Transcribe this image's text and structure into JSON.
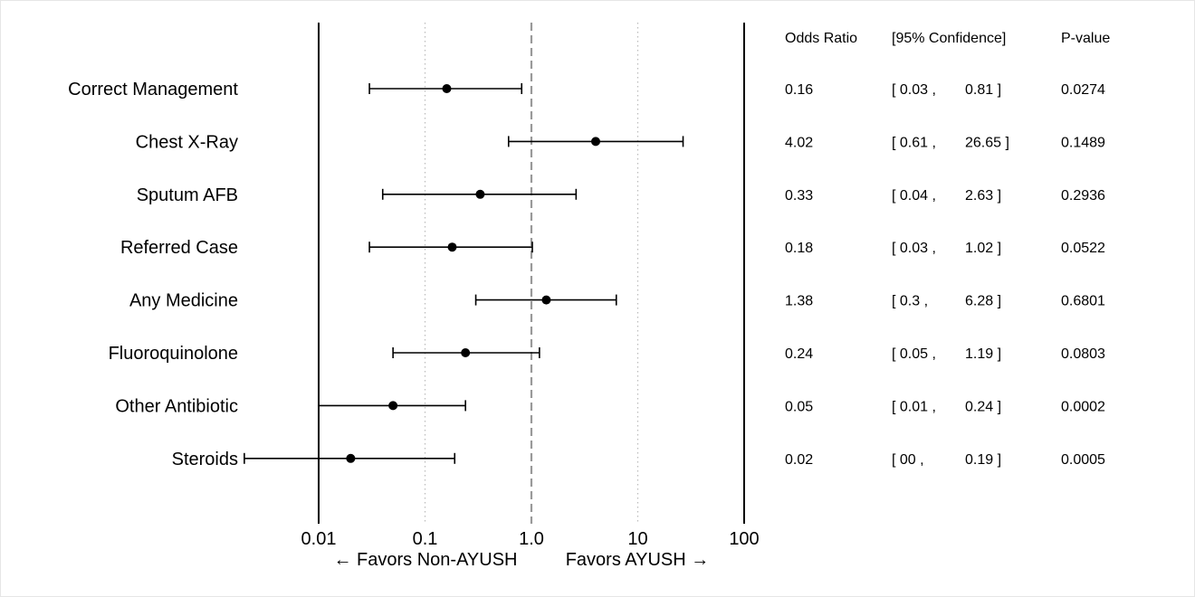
{
  "chart_data": {
    "type": "forest",
    "x_scale": "log",
    "x_range": [
      0.01,
      100
    ],
    "x_ticks": [
      "0.01",
      "0.1",
      "1.0",
      "10",
      "100"
    ],
    "x_tick_values": [
      0.01,
      0.1,
      1,
      10,
      100
    ],
    "reference_line": 1,
    "gridlines": "dotted at 0.1 and 10",
    "favors_left": "← Favors Non-AYUSH",
    "favors_right": "Favors AYUSH →",
    "table_headers": {
      "or": "Odds Ratio",
      "ci": "[95% Confidence]",
      "p": "P-value"
    },
    "rows": [
      {
        "label": "Correct Management",
        "or": 0.16,
        "lo": 0.03,
        "hi": 0.81,
        "or_text": "0.16",
        "lo_text": "[ 0.03 ,",
        "hi_text": "0.81 ]",
        "p_text": "0.0274"
      },
      {
        "label": "Chest X-Ray",
        "or": 4.02,
        "lo": 0.61,
        "hi": 26.65,
        "or_text": "4.02",
        "lo_text": "[ 0.61 ,",
        "hi_text": "26.65 ]",
        "p_text": "0.1489"
      },
      {
        "label": "Sputum AFB",
        "or": 0.33,
        "lo": 0.04,
        "hi": 2.63,
        "or_text": "0.33",
        "lo_text": "[ 0.04 ,",
        "hi_text": "2.63 ]",
        "p_text": "0.2936"
      },
      {
        "label": "Referred Case",
        "or": 0.18,
        "lo": 0.03,
        "hi": 1.02,
        "or_text": "0.18",
        "lo_text": "[ 0.03 ,",
        "hi_text": "1.02 ]",
        "p_text": "0.0522"
      },
      {
        "label": "Any Medicine",
        "or": 1.38,
        "lo": 0.3,
        "hi": 6.28,
        "or_text": "1.38",
        "lo_text": "[ 0.3 ,",
        "hi_text": "6.28 ]",
        "p_text": "0.6801"
      },
      {
        "label": "Fluoroquinolone",
        "or": 0.24,
        "lo": 0.05,
        "hi": 1.19,
        "or_text": "0.24",
        "lo_text": "[ 0.05 ,",
        "hi_text": "1.19 ]",
        "p_text": "0.0803"
      },
      {
        "label": "Other Antibiotic",
        "or": 0.05,
        "lo": 0.01,
        "hi": 0.24,
        "or_text": "0.05",
        "lo_text": "[ 0.01 ,",
        "hi_text": "0.24 ]",
        "p_text": "0.0002"
      },
      {
        "label": "Steroids",
        "or": 0.02,
        "lo": 0.002,
        "hi": 0.19,
        "or_text": "0.02",
        "lo_text": "[ 00 ,",
        "hi_text": "0.19 ]",
        "p_text": "0.0005"
      }
    ],
    "colors": {
      "ink": "#000000",
      "reference": "#999999",
      "grid": "#bbbbbb"
    }
  }
}
